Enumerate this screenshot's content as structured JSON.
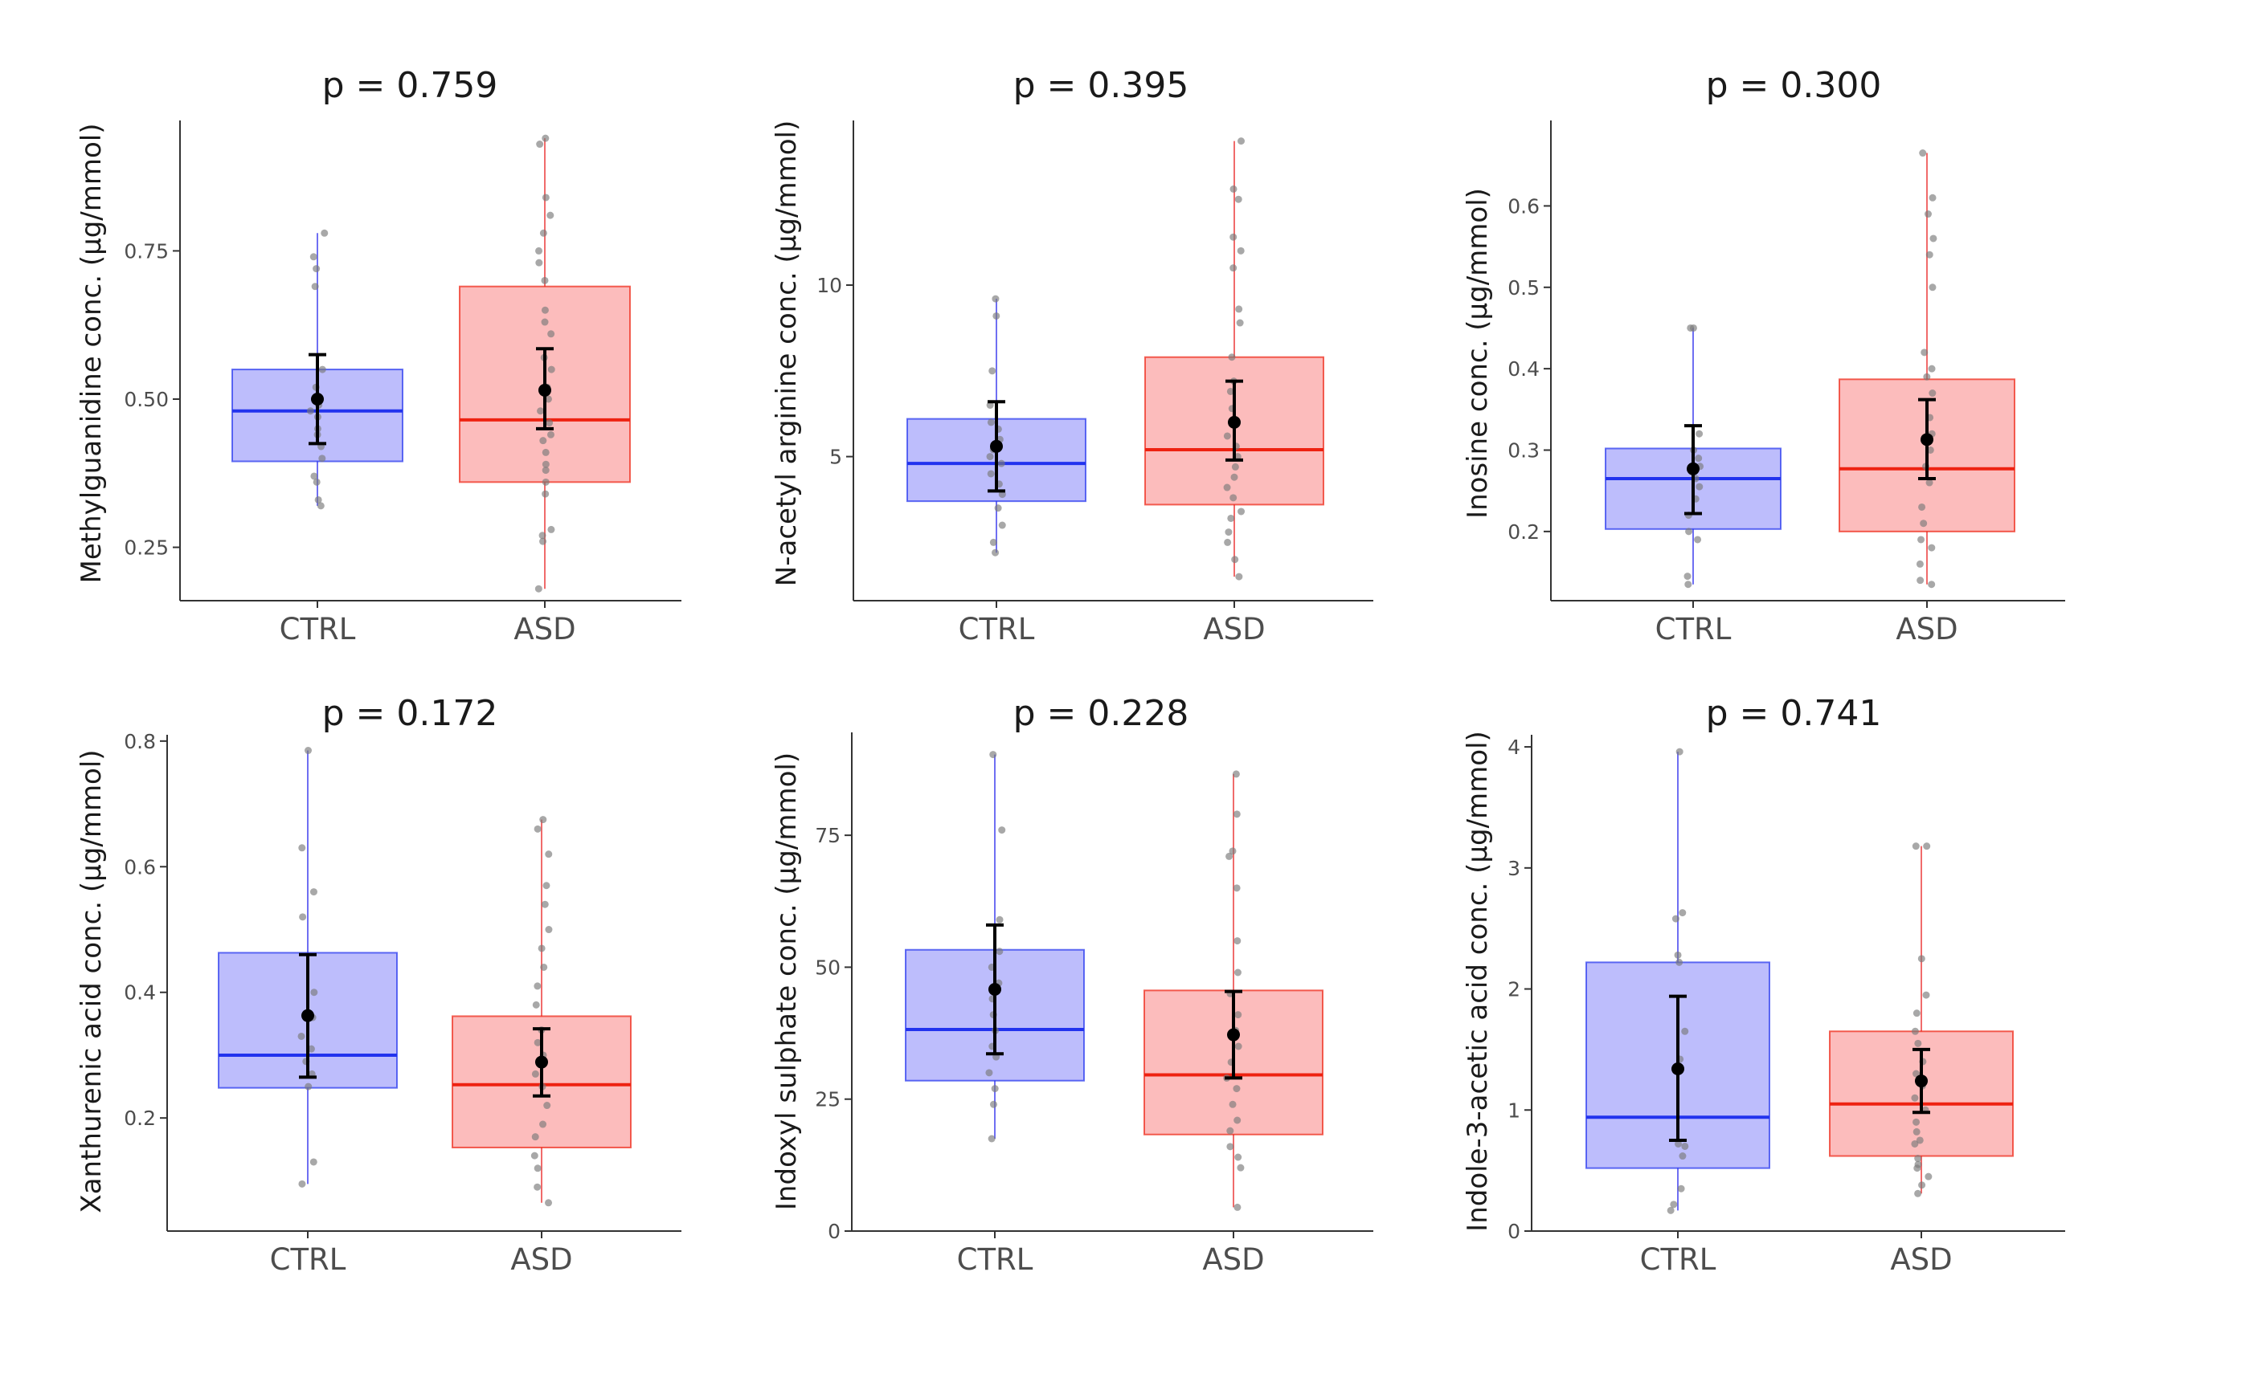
{
  "chart_data": [
    {
      "type": "box",
      "title": "p = 0.759",
      "ylabel": "Methylguanidine conc. (µg/mmol)",
      "categories": [
        "CTRL",
        "ASD"
      ],
      "yticks": [
        0.25,
        0.5,
        0.75
      ],
      "ytick_labels": [
        "0.25",
        "0.50",
        "0.75"
      ],
      "ylim": [
        0.16,
        0.97
      ],
      "boxes": [
        {
          "group": "CTRL",
          "min": 0.32,
          "q1": 0.395,
          "median": 0.48,
          "q3": 0.55,
          "max": 0.78,
          "mean": 0.5,
          "ci_low": 0.425,
          "ci_high": 0.575,
          "points": [
            0.32,
            0.33,
            0.36,
            0.37,
            0.4,
            0.42,
            0.44,
            0.45,
            0.47,
            0.48,
            0.49,
            0.5,
            0.52,
            0.55,
            0.69,
            0.72,
            0.74,
            0.78
          ]
        },
        {
          "group": "ASD",
          "min": 0.18,
          "q1": 0.36,
          "median": 0.465,
          "q3": 0.69,
          "max": 0.94,
          "mean": 0.515,
          "ci_low": 0.45,
          "ci_high": 0.585,
          "points": [
            0.18,
            0.26,
            0.27,
            0.28,
            0.34,
            0.36,
            0.38,
            0.39,
            0.41,
            0.43,
            0.44,
            0.46,
            0.48,
            0.5,
            0.52,
            0.55,
            0.57,
            0.61,
            0.63,
            0.65,
            0.7,
            0.73,
            0.75,
            0.78,
            0.81,
            0.84,
            0.93,
            0.94
          ]
        }
      ]
    },
    {
      "type": "box",
      "title": "p = 0.395",
      "ylabel": "N-acetyl arginine conc. (µg/mmol)",
      "categories": [
        "CTRL",
        "ASD"
      ],
      "yticks": [
        5,
        10
      ],
      "ytick_labels": [
        "5",
        "10"
      ],
      "ylim": [
        0.8,
        14.8
      ],
      "boxes": [
        {
          "group": "CTRL",
          "min": 2.2,
          "q1": 3.7,
          "median": 4.8,
          "q3": 6.1,
          "max": 9.6,
          "mean": 5.3,
          "ci_low": 4.0,
          "ci_high": 6.6,
          "points": [
            2.2,
            2.5,
            3.0,
            3.5,
            3.9,
            4.2,
            4.5,
            4.8,
            5.0,
            5.2,
            5.5,
            5.8,
            6.0,
            6.5,
            7.5,
            9.1,
            9.6
          ]
        },
        {
          "group": "ASD",
          "min": 1.5,
          "q1": 3.6,
          "median": 5.2,
          "q3": 7.9,
          "max": 14.2,
          "mean": 6.0,
          "ci_low": 4.9,
          "ci_high": 7.2,
          "points": [
            1.5,
            2.0,
            2.5,
            2.8,
            3.2,
            3.4,
            3.8,
            4.1,
            4.4,
            4.7,
            5.0,
            5.3,
            5.6,
            6.0,
            6.4,
            6.9,
            7.2,
            7.9,
            8.9,
            9.3,
            10.5,
            11.0,
            11.4,
            12.5,
            12.8,
            14.2
          ]
        }
      ]
    },
    {
      "type": "box",
      "title": "p = 0.300",
      "ylabel": "Inosine conc. (µg/mmol)",
      "categories": [
        "CTRL",
        "ASD"
      ],
      "yticks": [
        0.2,
        0.3,
        0.4,
        0.5,
        0.6
      ],
      "ytick_labels": [
        "0.2",
        "0.3",
        "0.4",
        "0.5",
        "0.6"
      ],
      "ylim": [
        0.115,
        0.705
      ],
      "boxes": [
        {
          "group": "CTRL",
          "min": 0.135,
          "q1": 0.203,
          "median": 0.265,
          "q3": 0.302,
          "max": 0.45,
          "mean": 0.277,
          "ci_low": 0.222,
          "ci_high": 0.33,
          "points": [
            0.135,
            0.145,
            0.19,
            0.2,
            0.22,
            0.24,
            0.255,
            0.265,
            0.28,
            0.29,
            0.3,
            0.32,
            0.45,
            0.45
          ]
        },
        {
          "group": "ASD",
          "min": 0.135,
          "q1": 0.2,
          "median": 0.277,
          "q3": 0.387,
          "max": 0.665,
          "mean": 0.313,
          "ci_low": 0.265,
          "ci_high": 0.362,
          "points": [
            0.135,
            0.14,
            0.16,
            0.18,
            0.19,
            0.21,
            0.23,
            0.26,
            0.28,
            0.3,
            0.32,
            0.34,
            0.37,
            0.39,
            0.4,
            0.42,
            0.5,
            0.54,
            0.56,
            0.59,
            0.61,
            0.665
          ]
        }
      ]
    },
    {
      "type": "box",
      "title": "p = 0.172",
      "ylabel": "Xanthurenic acid conc. (µg/mmol)",
      "categories": [
        "CTRL",
        "ASD"
      ],
      "yticks": [
        0.2,
        0.4,
        0.6,
        0.8
      ],
      "ytick_labels": [
        "0.2",
        "0.4",
        "0.6",
        "0.8"
      ],
      "ylim": [
        0.02,
        0.81
      ],
      "boxes": [
        {
          "group": "CTRL",
          "min": 0.095,
          "q1": 0.248,
          "median": 0.3,
          "q3": 0.463,
          "max": 0.785,
          "mean": 0.363,
          "ci_low": 0.265,
          "ci_high": 0.46,
          "points": [
            0.095,
            0.13,
            0.25,
            0.27,
            0.29,
            0.31,
            0.33,
            0.36,
            0.4,
            0.52,
            0.56,
            0.63,
            0.785
          ]
        },
        {
          "group": "ASD",
          "min": 0.065,
          "q1": 0.153,
          "median": 0.253,
          "q3": 0.362,
          "max": 0.675,
          "mean": 0.289,
          "ci_low": 0.235,
          "ci_high": 0.342,
          "points": [
            0.065,
            0.09,
            0.12,
            0.14,
            0.17,
            0.19,
            0.22,
            0.25,
            0.27,
            0.3,
            0.32,
            0.34,
            0.38,
            0.41,
            0.44,
            0.47,
            0.5,
            0.54,
            0.57,
            0.62,
            0.66,
            0.675
          ]
        }
      ]
    },
    {
      "type": "box",
      "title": "p = 0.228",
      "ylabel": "Indoxyl sulphate conc. (µg/mmol)",
      "categories": [
        "CTRL",
        "ASD"
      ],
      "yticks": [
        0,
        25,
        50,
        75
      ],
      "ytick_labels": [
        "0",
        "25",
        "50",
        "75"
      ],
      "ylim": [
        0,
        94.5
      ],
      "boxes": [
        {
          "group": "CTRL",
          "min": 17.5,
          "q1": 28.5,
          "median": 38.2,
          "q3": 53.3,
          "max": 90.3,
          "mean": 45.8,
          "ci_low": 33.6,
          "ci_high": 58.0,
          "points": [
            17.5,
            24.0,
            27.0,
            30.0,
            33.0,
            35.0,
            38.0,
            41.0,
            44.0,
            47.0,
            50.0,
            53.0,
            59.0,
            76.0,
            90.3
          ]
        },
        {
          "group": "ASD",
          "min": 4.5,
          "q1": 18.3,
          "median": 29.6,
          "q3": 45.6,
          "max": 86.6,
          "mean": 37.2,
          "ci_low": 29.0,
          "ci_high": 45.4,
          "points": [
            4.5,
            12.0,
            14.0,
            16.0,
            19.0,
            21.0,
            24.0,
            27.0,
            29.0,
            32.0,
            35.0,
            38.0,
            41.0,
            45.0,
            49.0,
            55.0,
            65.0,
            71.0,
            72.0,
            79.0,
            86.6
          ]
        }
      ]
    },
    {
      "type": "box",
      "title": "p = 0.741",
      "ylabel": "Indole-3-acetic acid conc. (µg/mmol)",
      "categories": [
        "CTRL",
        "ASD"
      ],
      "yticks": [
        0,
        1,
        2,
        3,
        4
      ],
      "ytick_labels": [
        "0",
        "1",
        "2",
        "3",
        "4"
      ],
      "ylim": [
        0,
        4.1
      ],
      "boxes": [
        {
          "group": "CTRL",
          "min": 0.17,
          "q1": 0.52,
          "median": 0.94,
          "q3": 2.22,
          "max": 3.96,
          "mean": 1.34,
          "ci_low": 0.75,
          "ci_high": 1.94,
          "points": [
            0.17,
            0.22,
            0.35,
            0.62,
            0.7,
            0.72,
            1.42,
            1.65,
            2.22,
            2.28,
            2.58,
            2.63,
            3.96
          ]
        },
        {
          "group": "ASD",
          "min": 0.31,
          "q1": 0.62,
          "median": 1.05,
          "q3": 1.65,
          "max": 3.18,
          "mean": 1.24,
          "ci_low": 0.98,
          "ci_high": 1.5,
          "points": [
            0.31,
            0.38,
            0.45,
            0.52,
            0.55,
            0.6,
            0.72,
            0.75,
            0.82,
            0.9,
            1.0,
            1.1,
            1.2,
            1.3,
            1.4,
            1.55,
            1.65,
            1.8,
            1.95,
            2.25,
            3.18,
            3.18
          ]
        }
      ]
    }
  ],
  "colors": {
    "ctrl_fill": "#bdbdfc",
    "ctrl_line": "#2233ee",
    "asd_fill": "#fcbcbc",
    "asd_line": "#ee2211",
    "ctrl_whisker": "#6f6ff2",
    "asd_whisker": "#f06b6b",
    "point": "#7a7a7a",
    "mean": "#000000"
  }
}
